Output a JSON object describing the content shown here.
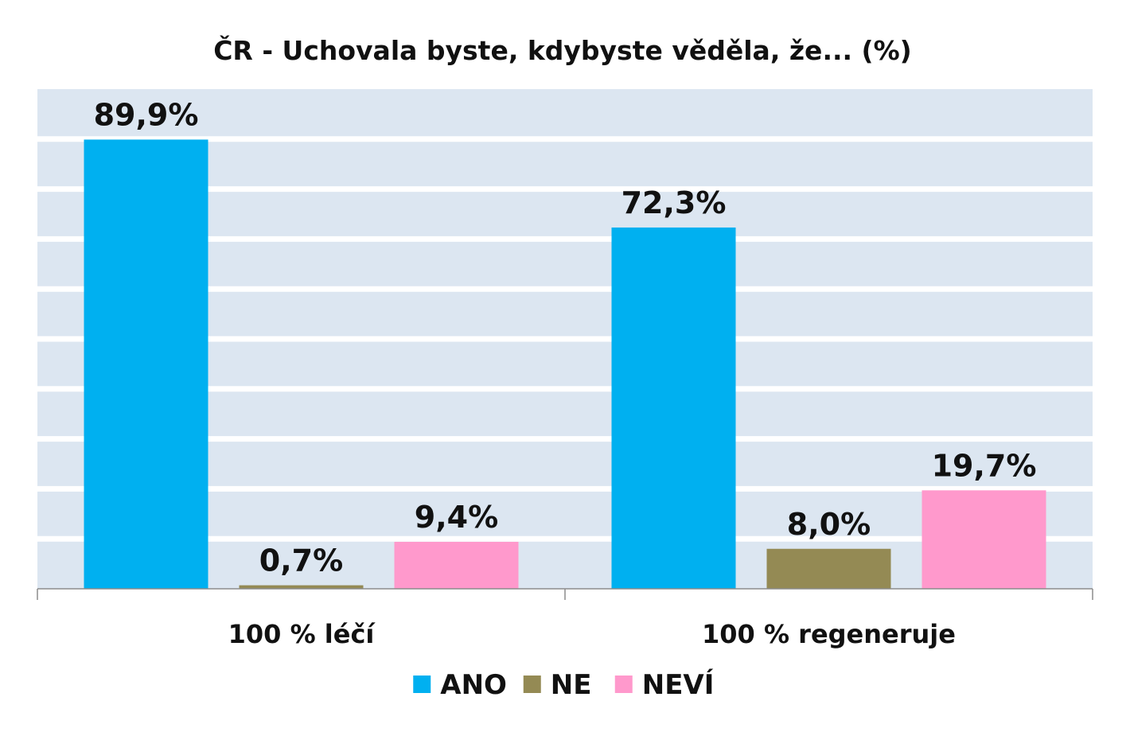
{
  "chart_data": {
    "type": "bar",
    "title": "ČR - Uchovala byste, kdybyste věděla, že... (%)",
    "categories": [
      "100 % léčí",
      "100 % regeneruje"
    ],
    "series": [
      {
        "name": "ANO",
        "color": "#00B0F0",
        "values": [
          89.9,
          72.3
        ],
        "labels": [
          "89,9%",
          "72,3%"
        ]
      },
      {
        "name": "NE",
        "color": "#948A54",
        "values": [
          0.7,
          8.0
        ],
        "labels": [
          "0,7%",
          "8,0%"
        ]
      },
      {
        "name": "NEVÍ",
        "color": "#FF99CC",
        "values": [
          9.4,
          19.7
        ],
        "labels": [
          "9,4%",
          "19,7%"
        ]
      }
    ],
    "ylim": [
      0,
      100
    ],
    "grid": true,
    "legend_position": "bottom",
    "plot_background": "#DCE6F1",
    "gridline_color": "#FFFFFF"
  }
}
